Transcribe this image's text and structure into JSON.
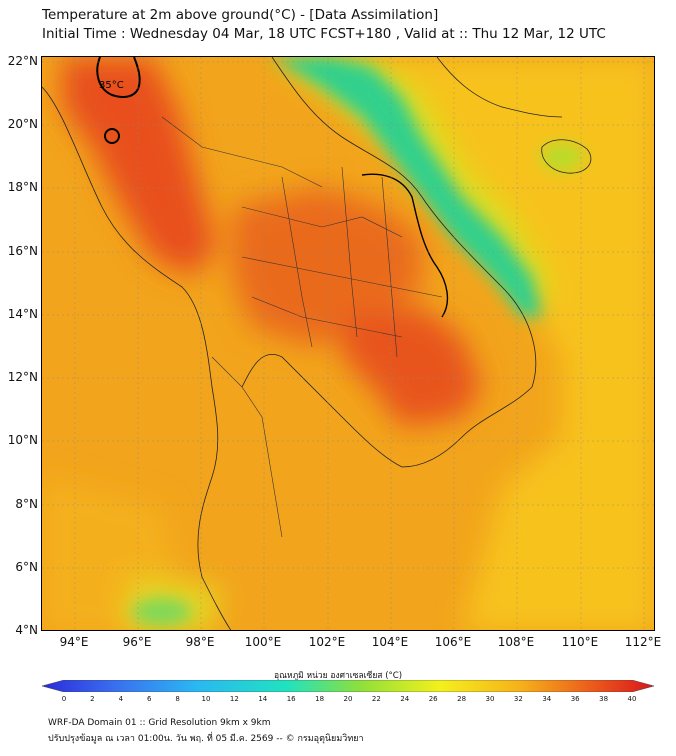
{
  "header": {
    "title": "Temperature at 2m above ground(°C) - [Data Assimilation]",
    "subtitle": "Initial Time : Wednesday 04 Mar, 18 UTC FCST+180 , Valid at :: Thu 12 Mar, 12 UTC"
  },
  "map": {
    "lat_labels": [
      "22°N",
      "20°N",
      "18°N",
      "16°N",
      "14°N",
      "12°N",
      "10°N",
      "8°N",
      "6°N",
      "4°N"
    ],
    "lon_labels": [
      "94°E",
      "96°E",
      "98°E",
      "100°E",
      "102°E",
      "104°E",
      "106°E",
      "108°E",
      "110°E",
      "112°E"
    ],
    "contour_label": "35°C",
    "colors": {
      "hot": "#e8501c",
      "warm": "#f08a1c",
      "mild": "#f7c21a",
      "cool": "#d7e021",
      "cold": "#33d08c"
    }
  },
  "colorbar": {
    "title": "อุณหภูมิ หน่วย องศาเซลเซียส (°C)",
    "ticks": [
      "0",
      "2",
      "4",
      "6",
      "8",
      "10",
      "12",
      "14",
      "16",
      "18",
      "20",
      "22",
      "24",
      "26",
      "28",
      "30",
      "32",
      "34",
      "36",
      "38",
      "40"
    ]
  },
  "footer": {
    "line1": "WRF-DA Domain 01 :: Grid Resolution 9km x 9km",
    "line2": "ปรับปรุงข้อมูล ณ เวลา 01:00น. วัน พฤ. ที่ 05 มี.ค. 2569 -- © กรมอุตุนิยมวิทยา"
  }
}
